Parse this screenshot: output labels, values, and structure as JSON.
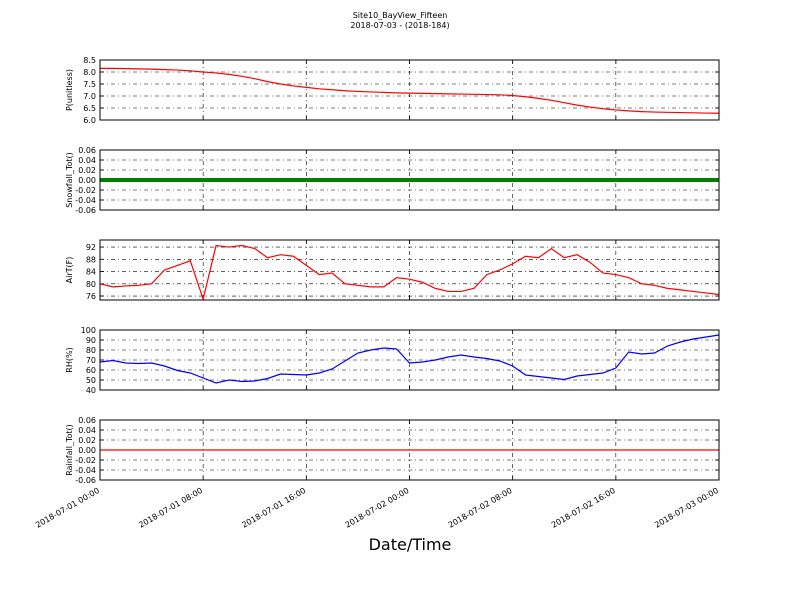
{
  "title": "Site10_BayView_Fifteen",
  "subtitle": "2018-07-03 - (2018-184)",
  "xlabel": "Date/Time",
  "chart_data": [
    {
      "type": "line",
      "ylabel": "P(unitless)",
      "color": "#ff0000",
      "grid": true,
      "xlim": [
        "2018-07-01 00:00",
        "2018-07-03 00:00"
      ],
      "xticks": [
        "2018-07-01 00:00",
        "2018-07-01 08:00",
        "2018-07-01 16:00",
        "2018-07-02 00:00",
        "2018-07-02 08:00",
        "2018-07-02 16:00",
        "2018-07-03 00:00"
      ],
      "ylim": [
        6,
        8.5
      ],
      "yticks": [
        {
          "value": 6,
          "label": "6.0"
        },
        6.5,
        {
          "value": 7,
          "label": "7.0"
        },
        7.5,
        {
          "value": 8,
          "label": "8.0"
        },
        8.5
      ],
      "x": [
        "2018-07-01 00:00",
        "2018-07-01 01:00",
        "2018-07-01 02:00",
        "2018-07-01 03:00",
        "2018-07-01 04:00",
        "2018-07-01 05:00",
        "2018-07-01 06:00",
        "2018-07-01 07:00",
        "2018-07-01 08:00",
        "2018-07-01 09:00",
        "2018-07-01 10:00",
        "2018-07-01 11:00",
        "2018-07-01 12:00",
        "2018-07-01 13:00",
        "2018-07-01 14:00",
        "2018-07-01 15:00",
        "2018-07-01 16:00",
        "2018-07-01 17:00",
        "2018-07-01 18:00",
        "2018-07-01 19:00",
        "2018-07-01 20:00",
        "2018-07-01 21:00",
        "2018-07-01 22:00",
        "2018-07-01 23:00",
        "2018-07-02 00:00",
        "2018-07-02 01:00",
        "2018-07-02 02:00",
        "2018-07-02 03:00",
        "2018-07-02 04:00",
        "2018-07-02 05:00",
        "2018-07-02 06:00",
        "2018-07-02 07:00",
        "2018-07-02 08:00",
        "2018-07-02 09:00",
        "2018-07-02 10:00",
        "2018-07-02 11:00",
        "2018-07-02 12:00",
        "2018-07-02 13:00",
        "2018-07-02 14:00",
        "2018-07-02 15:00",
        "2018-07-02 16:00",
        "2018-07-02 17:00",
        "2018-07-02 18:00",
        "2018-07-02 19:00",
        "2018-07-02 20:00",
        "2018-07-02 21:00",
        "2018-07-02 22:00",
        "2018-07-02 23:00",
        "2018-07-03 00:00"
      ],
      "values": [
        8.15,
        8.15,
        8.14,
        8.13,
        8.12,
        8.1,
        8.08,
        8.05,
        8.0,
        7.96,
        7.9,
        7.82,
        7.72,
        7.6,
        7.5,
        7.42,
        7.36,
        7.3,
        7.26,
        7.22,
        7.19,
        7.17,
        7.15,
        7.13,
        7.12,
        7.11,
        7.1,
        7.09,
        7.08,
        7.07,
        7.06,
        7.05,
        7.02,
        6.97,
        6.9,
        6.82,
        6.72,
        6.62,
        6.54,
        6.47,
        6.42,
        6.38,
        6.35,
        6.33,
        6.32,
        6.31,
        6.3,
        6.29,
        6.28
      ]
    },
    {
      "type": "line",
      "ylabel": "Snowfall_Tot()",
      "color": "#008000",
      "line_width": 4,
      "grid": true,
      "xlim": [
        "2018-07-01 00:00",
        "2018-07-03 00:00"
      ],
      "xticks": [
        "2018-07-01 00:00",
        "2018-07-01 08:00",
        "2018-07-01 16:00",
        "2018-07-02 00:00",
        "2018-07-02 08:00",
        "2018-07-02 16:00",
        "2018-07-03 00:00"
      ],
      "ylim": [
        -0.06,
        0.06
      ],
      "yticks": [
        -0.06,
        -0.04,
        -0.02,
        {
          "value": 0,
          "label": "0.00"
        },
        0.02,
        0.04,
        0.06
      ],
      "x": [
        "2018-07-01 00:00",
        "2018-07-01 08:00",
        "2018-07-01 16:00",
        "2018-07-02 00:00",
        "2018-07-02 08:00",
        "2018-07-02 16:00",
        "2018-07-03 00:00"
      ],
      "values": [
        0,
        0,
        0,
        0,
        0,
        0,
        0
      ]
    },
    {
      "type": "line",
      "ylabel": "AirT(F)",
      "color": "#ff0000",
      "grid": true,
      "xlim": [
        "2018-07-01 00:00",
        "2018-07-03 00:00"
      ],
      "xticks": [
        "2018-07-01 00:00",
        "2018-07-01 08:00",
        "2018-07-01 16:00",
        "2018-07-02 00:00",
        "2018-07-02 08:00",
        "2018-07-02 16:00",
        "2018-07-03 00:00"
      ],
      "ylim": [
        74.7,
        94.3
      ],
      "yticks": [
        76,
        80,
        84,
        88,
        92
      ],
      "x": [
        "2018-07-01 00:00",
        "2018-07-01 01:00",
        "2018-07-01 02:00",
        "2018-07-01 03:00",
        "2018-07-01 04:00",
        "2018-07-01 05:00",
        "2018-07-01 06:00",
        "2018-07-01 07:00",
        "2018-07-01 08:00",
        "2018-07-01 09:00",
        "2018-07-01 10:00",
        "2018-07-01 11:00",
        "2018-07-01 12:00",
        "2018-07-01 13:00",
        "2018-07-01 14:00",
        "2018-07-01 15:00",
        "2018-07-01 16:00",
        "2018-07-01 17:00",
        "2018-07-01 18:00",
        "2018-07-01 19:00",
        "2018-07-01 20:00",
        "2018-07-01 21:00",
        "2018-07-01 22:00",
        "2018-07-01 23:00",
        "2018-07-02 00:00",
        "2018-07-02 01:00",
        "2018-07-02 02:00",
        "2018-07-02 03:00",
        "2018-07-02 04:00",
        "2018-07-02 05:00",
        "2018-07-02 06:00",
        "2018-07-02 07:00",
        "2018-07-02 08:00",
        "2018-07-02 09:00",
        "2018-07-02 10:00",
        "2018-07-02 11:00",
        "2018-07-02 12:00",
        "2018-07-02 13:00",
        "2018-07-02 14:00",
        "2018-07-02 15:00",
        "2018-07-02 16:00",
        "2018-07-02 17:00",
        "2018-07-02 18:00",
        "2018-07-02 19:00",
        "2018-07-02 20:00",
        "2018-07-02 21:00",
        "2018-07-02 22:00",
        "2018-07-02 23:00",
        "2018-07-03 00:00"
      ],
      "values": [
        80,
        79,
        79.3,
        79.5,
        80,
        84.5,
        86,
        87.5,
        75,
        92.5,
        92,
        92.5,
        91.5,
        88.5,
        89.5,
        89,
        86,
        83,
        83.5,
        80,
        79.5,
        79,
        79,
        82,
        81.5,
        80.5,
        78.5,
        77.5,
        77.5,
        78.5,
        83,
        84.5,
        86.5,
        89,
        88.5,
        91.5,
        88.5,
        89.5,
        87,
        83.5,
        83,
        82,
        80,
        79.5,
        78.5,
        78,
        77.5,
        77,
        76.5
      ]
    },
    {
      "type": "line",
      "ylabel": "RH(%)",
      "color": "#0000ff",
      "grid": true,
      "xlim": [
        "2018-07-01 00:00",
        "2018-07-03 00:00"
      ],
      "xticks": [
        "2018-07-01 00:00",
        "2018-07-01 08:00",
        "2018-07-01 16:00",
        "2018-07-02 00:00",
        "2018-07-02 08:00",
        "2018-07-02 16:00",
        "2018-07-03 00:00"
      ],
      "ylim": [
        40,
        100
      ],
      "yticks": [
        40,
        50,
        60,
        70,
        80,
        90,
        100
      ],
      "x": [
        "2018-07-01 00:00",
        "2018-07-01 01:00",
        "2018-07-01 02:00",
        "2018-07-01 03:00",
        "2018-07-01 04:00",
        "2018-07-01 05:00",
        "2018-07-01 06:00",
        "2018-07-01 07:00",
        "2018-07-01 08:00",
        "2018-07-01 09:00",
        "2018-07-01 10:00",
        "2018-07-01 11:00",
        "2018-07-01 12:00",
        "2018-07-01 13:00",
        "2018-07-01 14:00",
        "2018-07-01 15:00",
        "2018-07-01 16:00",
        "2018-07-01 17:00",
        "2018-07-01 18:00",
        "2018-07-01 19:00",
        "2018-07-01 20:00",
        "2018-07-01 21:00",
        "2018-07-01 22:00",
        "2018-07-01 23:00",
        "2018-07-02 00:00",
        "2018-07-02 01:00",
        "2018-07-02 02:00",
        "2018-07-02 03:00",
        "2018-07-02 04:00",
        "2018-07-02 05:00",
        "2018-07-02 06:00",
        "2018-07-02 07:00",
        "2018-07-02 08:00",
        "2018-07-02 09:00",
        "2018-07-02 10:00",
        "2018-07-02 11:00",
        "2018-07-02 12:00",
        "2018-07-02 13:00",
        "2018-07-02 14:00",
        "2018-07-02 15:00",
        "2018-07-02 16:00",
        "2018-07-02 17:00",
        "2018-07-02 18:00",
        "2018-07-02 19:00",
        "2018-07-02 20:00",
        "2018-07-02 21:00",
        "2018-07-02 22:00",
        "2018-07-02 23:00",
        "2018-07-03 00:00"
      ],
      "values": [
        68,
        69.5,
        67,
        66.5,
        67,
        64,
        59.5,
        57,
        52,
        47,
        50,
        48.5,
        49,
        51.5,
        56,
        55.5,
        55,
        57,
        61,
        69,
        77,
        80,
        82,
        81,
        67,
        68,
        70,
        73,
        75,
        73,
        71.5,
        69,
        64,
        55,
        53.5,
        52,
        50.5,
        54,
        55.5,
        57,
        62,
        78,
        76,
        77,
        84,
        88,
        91,
        93,
        95
      ]
    },
    {
      "type": "line",
      "ylabel": "Rainfall_Tot()",
      "color": "#ff0000",
      "grid": true,
      "xlim": [
        "2018-07-01 00:00",
        "2018-07-03 00:00"
      ],
      "xticks": [
        "2018-07-01 00:00",
        "2018-07-01 08:00",
        "2018-07-01 16:00",
        "2018-07-02 00:00",
        "2018-07-02 08:00",
        "2018-07-02 16:00",
        "2018-07-03 00:00"
      ],
      "show_xtick_labels": true,
      "ylim": [
        -0.06,
        0.06
      ],
      "yticks": [
        -0.06,
        -0.04,
        -0.02,
        {
          "value": 0,
          "label": "0.00"
        },
        0.02,
        0.04,
        0.06
      ],
      "x": [
        "2018-07-01 00:00",
        "2018-07-01 08:00",
        "2018-07-01 16:00",
        "2018-07-02 00:00",
        "2018-07-02 08:00",
        "2018-07-02 16:00",
        "2018-07-03 00:00"
      ],
      "values": [
        0,
        0,
        0,
        0,
        0,
        0,
        0
      ]
    }
  ]
}
